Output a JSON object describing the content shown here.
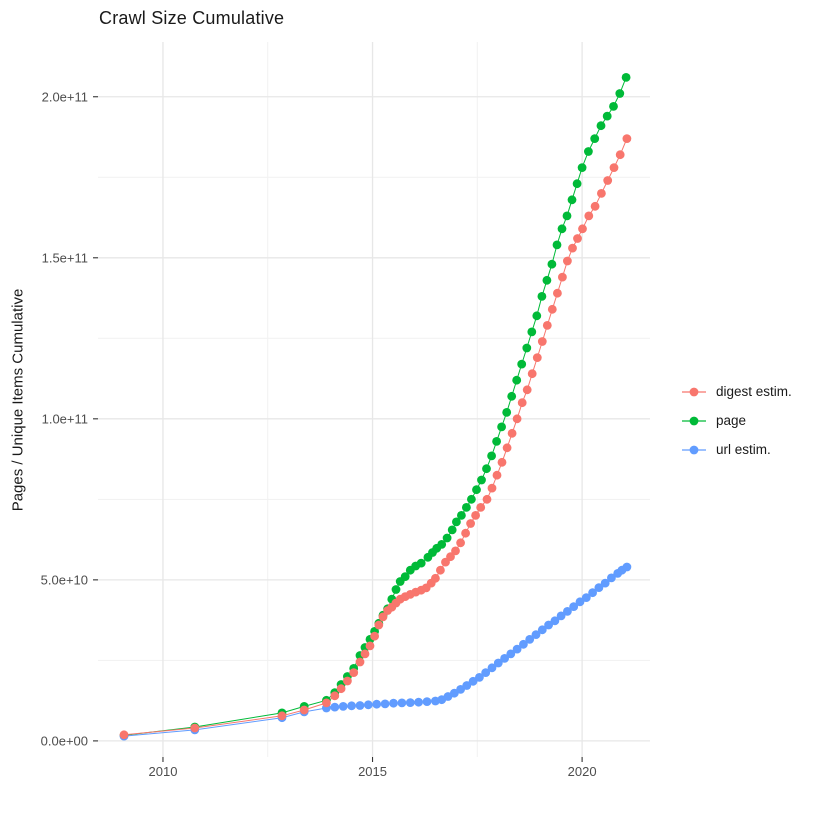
{
  "title": "Crawl Size Cumulative",
  "chart_data": {
    "type": "scatter",
    "title": "Crawl Size Cumulative",
    "xlabel": "",
    "ylabel": "Pages / Unique Items Cumulative",
    "xlim": [
      2008.45,
      2021.62
    ],
    "ylim": [
      -5000000000.0,
      217000000000.0
    ],
    "grid": true,
    "legend_position": "right",
    "x_ticks": {
      "major": [
        {
          "value": 2010,
          "label": "2010"
        },
        {
          "value": 2015,
          "label": "2015"
        },
        {
          "value": 2020,
          "label": "2020"
        }
      ],
      "minor": [
        2012.5,
        2017.5
      ]
    },
    "y_ticks": {
      "major": [
        {
          "value": 0,
          "label": "0.0e+00"
        },
        {
          "value": 50000000000.0,
          "label": "5.0e+10"
        },
        {
          "value": 100000000000.0,
          "label": "1.0e+11"
        },
        {
          "value": 150000000000.0,
          "label": "1.5e+11"
        },
        {
          "value": 200000000000.0,
          "label": "2.0e+11"
        }
      ],
      "minor": [
        25000000000.0,
        75000000000.0,
        125000000000.0,
        175000000000.0
      ]
    },
    "series": [
      {
        "name": "digest estim.",
        "color": "#F8766D",
        "points": [
          [
            2009.07,
            1900000000.0
          ],
          [
            2010.76,
            4000000000.0
          ],
          [
            2012.84,
            7800000000.0
          ],
          [
            2013.37,
            9600000000.0
          ],
          [
            2013.9,
            11800000000.0
          ],
          [
            2014.1,
            14000000000.0
          ],
          [
            2014.25,
            16200000000.0
          ],
          [
            2014.4,
            18600000000.0
          ],
          [
            2014.55,
            21200000000.0
          ],
          [
            2014.7,
            24500000000.0
          ],
          [
            2014.82,
            27000000000.0
          ],
          [
            2014.94,
            29500000000.0
          ],
          [
            2015.05,
            32500000000.0
          ],
          [
            2015.15,
            36000000000.0
          ],
          [
            2015.25,
            38500000000.0
          ],
          [
            2015.36,
            40500000000.0
          ],
          [
            2015.46,
            41500000000.0
          ],
          [
            2015.56,
            42800000000.0
          ],
          [
            2015.66,
            44000000000.0
          ],
          [
            2015.78,
            44800000000.0
          ],
          [
            2015.9,
            45500000000.0
          ],
          [
            2016.03,
            46200000000.0
          ],
          [
            2016.16,
            46800000000.0
          ],
          [
            2016.28,
            47500000000.0
          ],
          [
            2016.4,
            49000000000.0
          ],
          [
            2016.5,
            50500000000.0
          ],
          [
            2016.62,
            53000000000.0
          ],
          [
            2016.74,
            55500000000.0
          ],
          [
            2016.86,
            57200000000.0
          ],
          [
            2016.98,
            59000000000.0
          ],
          [
            2017.1,
            61500000000.0
          ],
          [
            2017.22,
            64500000000.0
          ],
          [
            2017.34,
            67500000000.0
          ],
          [
            2017.46,
            70000000000.0
          ],
          [
            2017.58,
            72500000000.0
          ],
          [
            2017.73,
            75000000000.0
          ],
          [
            2017.85,
            78500000000.0
          ],
          [
            2017.97,
            82500000000.0
          ],
          [
            2018.09,
            86500000000.0
          ],
          [
            2018.21,
            91000000000.0
          ],
          [
            2018.33,
            95500000000.0
          ],
          [
            2018.45,
            100000000000.0
          ],
          [
            2018.57,
            105000000000.0
          ],
          [
            2018.69,
            109000000000.0
          ],
          [
            2018.81,
            114000000000.0
          ],
          [
            2018.93,
            119000000000.0
          ],
          [
            2019.05,
            124000000000.0
          ],
          [
            2019.17,
            129000000000.0
          ],
          [
            2019.29,
            134000000000.0
          ],
          [
            2019.41,
            139000000000.0
          ],
          [
            2019.53,
            144000000000.0
          ],
          [
            2019.65,
            149000000000.0
          ],
          [
            2019.77,
            153000000000.0
          ],
          [
            2019.89,
            156000000000.0
          ],
          [
            2020.01,
            159000000000.0
          ],
          [
            2020.16,
            163000000000.0
          ],
          [
            2020.31,
            166000000000.0
          ],
          [
            2020.46,
            170000000000.0
          ],
          [
            2020.61,
            174000000000.0
          ],
          [
            2020.76,
            178000000000.0
          ],
          [
            2020.91,
            182000000000.0
          ],
          [
            2021.07,
            187000000000.0
          ]
        ]
      },
      {
        "name": "page",
        "color": "#00BA38",
        "points": [
          [
            2009.07,
            1700000000.0
          ],
          [
            2010.76,
            4300000000.0
          ],
          [
            2012.84,
            8700000000.0
          ],
          [
            2013.37,
            10700000000.0
          ],
          [
            2013.9,
            12600000000.0
          ],
          [
            2014.1,
            15000000000.0
          ],
          [
            2014.25,
            17500000000.0
          ],
          [
            2014.4,
            20000000000.0
          ],
          [
            2014.55,
            22500000000.0
          ],
          [
            2014.7,
            26500000000.0
          ],
          [
            2014.82,
            29000000000.0
          ],
          [
            2014.94,
            31500000000.0
          ],
          [
            2015.05,
            34000000000.0
          ],
          [
            2015.15,
            36500000000.0
          ],
          [
            2015.25,
            39000000000.0
          ],
          [
            2015.36,
            41000000000.0
          ],
          [
            2015.46,
            44000000000.0
          ],
          [
            2015.56,
            47000000000.0
          ],
          [
            2015.66,
            49500000000.0
          ],
          [
            2015.78,
            51000000000.0
          ],
          [
            2015.9,
            53000000000.0
          ],
          [
            2016.03,
            54300000000.0
          ],
          [
            2016.16,
            55200000000.0
          ],
          [
            2016.32,
            57000000000.0
          ],
          [
            2016.43,
            58500000000.0
          ],
          [
            2016.53,
            59800000000.0
          ],
          [
            2016.65,
            61000000000.0
          ],
          [
            2016.78,
            63000000000.0
          ],
          [
            2016.9,
            65500000000.0
          ],
          [
            2017.0,
            68000000000.0
          ],
          [
            2017.12,
            70000000000.0
          ],
          [
            2017.24,
            72500000000.0
          ],
          [
            2017.36,
            75000000000.0
          ],
          [
            2017.48,
            78000000000.0
          ],
          [
            2017.6,
            81000000000.0
          ],
          [
            2017.72,
            84500000000.0
          ],
          [
            2017.84,
            88500000000.0
          ],
          [
            2017.96,
            93000000000.0
          ],
          [
            2018.08,
            97500000000.0
          ],
          [
            2018.2,
            102000000000.0
          ],
          [
            2018.32,
            107000000000.0
          ],
          [
            2018.44,
            112000000000.0
          ],
          [
            2018.56,
            117000000000.0
          ],
          [
            2018.68,
            122000000000.0
          ],
          [
            2018.8,
            127000000000.0
          ],
          [
            2018.92,
            132000000000.0
          ],
          [
            2019.04,
            138000000000.0
          ],
          [
            2019.16,
            143000000000.0
          ],
          [
            2019.28,
            148000000000.0
          ],
          [
            2019.4,
            154000000000.0
          ],
          [
            2019.52,
            159000000000.0
          ],
          [
            2019.64,
            163000000000.0
          ],
          [
            2019.76,
            168000000000.0
          ],
          [
            2019.88,
            173000000000.0
          ],
          [
            2020.0,
            178000000000.0
          ],
          [
            2020.15,
            183000000000.0
          ],
          [
            2020.3,
            187000000000.0
          ],
          [
            2020.45,
            191000000000.0
          ],
          [
            2020.6,
            194000000000.0
          ],
          [
            2020.75,
            197000000000.0
          ],
          [
            2020.9,
            201000000000.0
          ],
          [
            2021.05,
            206000000000.0
          ]
        ]
      },
      {
        "name": "url estim.",
        "color": "#619CFF",
        "points": [
          [
            2009.07,
            1500000000.0
          ],
          [
            2010.76,
            3400000000.0
          ],
          [
            2012.84,
            7200000000.0
          ],
          [
            2013.37,
            9000000000.0
          ],
          [
            2013.9,
            10200000000.0
          ],
          [
            2014.1,
            10500000000.0
          ],
          [
            2014.3,
            10700000000.0
          ],
          [
            2014.5,
            10900000000.0
          ],
          [
            2014.7,
            11000000000.0
          ],
          [
            2014.9,
            11200000000.0
          ],
          [
            2015.1,
            11400000000.0
          ],
          [
            2015.3,
            11500000000.0
          ],
          [
            2015.5,
            11700000000.0
          ],
          [
            2015.7,
            11800000000.0
          ],
          [
            2015.9,
            11900000000.0
          ],
          [
            2016.1,
            12000000000.0
          ],
          [
            2016.3,
            12200000000.0
          ],
          [
            2016.5,
            12400000000.0
          ],
          [
            2016.65,
            12800000000.0
          ],
          [
            2016.8,
            13800000000.0
          ],
          [
            2016.95,
            14800000000.0
          ],
          [
            2017.1,
            16000000000.0
          ],
          [
            2017.25,
            17200000000.0
          ],
          [
            2017.4,
            18500000000.0
          ],
          [
            2017.55,
            19700000000.0
          ],
          [
            2017.7,
            21200000000.0
          ],
          [
            2017.85,
            22700000000.0
          ],
          [
            2018.0,
            24200000000.0
          ],
          [
            2018.15,
            25600000000.0
          ],
          [
            2018.3,
            27000000000.0
          ],
          [
            2018.45,
            28500000000.0
          ],
          [
            2018.6,
            30000000000.0
          ],
          [
            2018.75,
            31500000000.0
          ],
          [
            2018.9,
            33000000000.0
          ],
          [
            2019.05,
            34500000000.0
          ],
          [
            2019.2,
            36000000000.0
          ],
          [
            2019.35,
            37300000000.0
          ],
          [
            2019.5,
            38800000000.0
          ],
          [
            2019.65,
            40200000000.0
          ],
          [
            2019.8,
            41700000000.0
          ],
          [
            2019.95,
            43200000000.0
          ],
          [
            2020.1,
            44500000000.0
          ],
          [
            2020.25,
            46000000000.0
          ],
          [
            2020.4,
            47600000000.0
          ],
          [
            2020.55,
            49000000000.0
          ],
          [
            2020.7,
            50600000000.0
          ],
          [
            2020.85,
            52000000000.0
          ],
          [
            2020.95,
            53000000000.0
          ],
          [
            2021.07,
            54000000000.0
          ]
        ]
      }
    ],
    "legend": [
      "digest estim.",
      "page",
      "url estim."
    ]
  }
}
